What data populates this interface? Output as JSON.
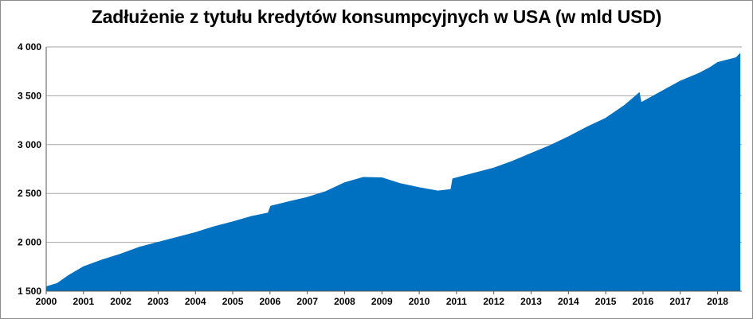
{
  "chart_data": {
    "type": "area",
    "title": "Zadłużenie z tytułu kredytów konsumpcyjnych w USA (w mld USD)",
    "xlabel": "",
    "ylabel": "",
    "xlim": [
      2000,
      2018.65
    ],
    "ylim": [
      1500,
      4000
    ],
    "y_ticks": [
      1500,
      2000,
      2500,
      3000,
      3500,
      4000
    ],
    "y_tick_labels": [
      "1 500",
      "2 000",
      "2 500",
      "3 000",
      "3 500",
      "4 000"
    ],
    "x_ticks": [
      2000,
      2001,
      2002,
      2003,
      2004,
      2005,
      2006,
      2007,
      2008,
      2009,
      2010,
      2011,
      2012,
      2013,
      2014,
      2015,
      2016,
      2017,
      2018
    ],
    "x_tick_labels": [
      "2000",
      "2001",
      "2002",
      "2003",
      "2004",
      "2005",
      "2006",
      "2007",
      "2008",
      "2009",
      "2010",
      "2011",
      "2012",
      "2013",
      "2014",
      "2015",
      "2016",
      "2017",
      "2018"
    ],
    "grid": true,
    "legend": "none",
    "color": "#0070c0",
    "series": [
      {
        "x": [
          2000.0,
          2000.3,
          2000.6,
          2001.0,
          2001.5,
          2002.0,
          2002.5,
          2003.0,
          2003.5,
          2004.0,
          2004.5,
          2005.0,
          2005.5,
          2005.95,
          2006.02,
          2006.5,
          2007.0,
          2007.5,
          2008.0,
          2008.5,
          2009.0,
          2009.5,
          2010.0,
          2010.5,
          2010.85,
          2010.9,
          2011.5,
          2012.0,
          2012.5,
          2013.0,
          2013.5,
          2014.0,
          2014.5,
          2015.0,
          2015.5,
          2015.9,
          2015.95,
          2016.5,
          2017.0,
          2017.5,
          2017.8,
          2018.0,
          2018.5,
          2018.6
        ],
        "y": [
          1545,
          1580,
          1660,
          1750,
          1820,
          1880,
          1950,
          2000,
          2050,
          2100,
          2160,
          2210,
          2265,
          2300,
          2370,
          2415,
          2460,
          2520,
          2610,
          2665,
          2660,
          2600,
          2560,
          2525,
          2540,
          2650,
          2710,
          2760,
          2830,
          2910,
          2990,
          3080,
          3180,
          3270,
          3400,
          3530,
          3430,
          3545,
          3650,
          3730,
          3790,
          3840,
          3890,
          3930
        ]
      }
    ]
  }
}
